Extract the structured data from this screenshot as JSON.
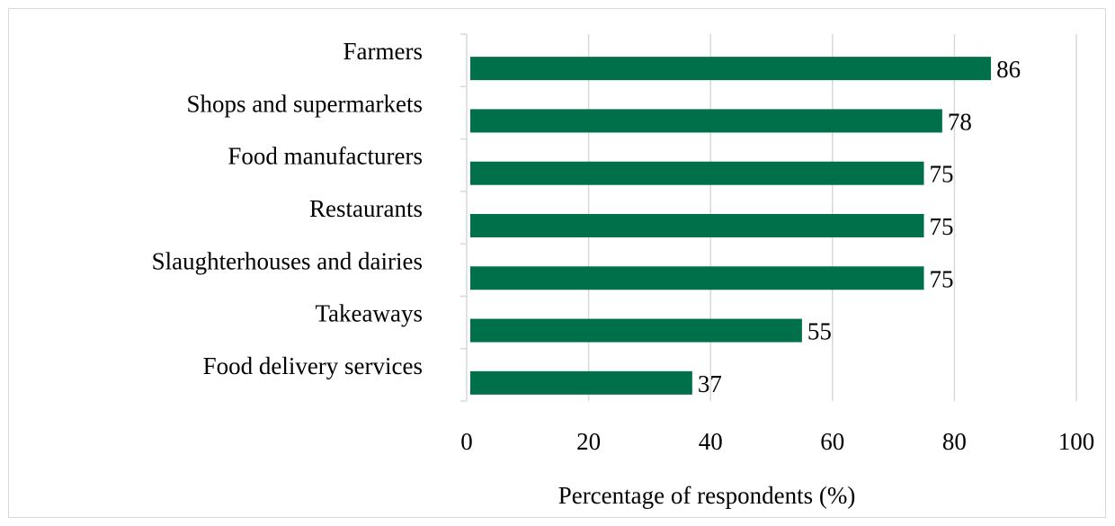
{
  "chart_data": {
    "type": "bar",
    "orientation": "horizontal",
    "title": "",
    "xlabel": "Percentage of respondents (%)",
    "ylabel": "",
    "categories": [
      "Farmers",
      "Shops and supermarkets",
      "Food manufacturers",
      "Restaurants",
      "Slaughterhouses and dairies",
      "Takeaways",
      "Food delivery services"
    ],
    "values": [
      86,
      78,
      75,
      75,
      75,
      55,
      37
    ],
    "xlim": [
      0,
      100
    ],
    "xticks": [
      "0",
      "20",
      "40",
      "60",
      "80",
      "100"
    ],
    "grid": "vertical",
    "bar_color": "#00704a",
    "legend": "none"
  }
}
